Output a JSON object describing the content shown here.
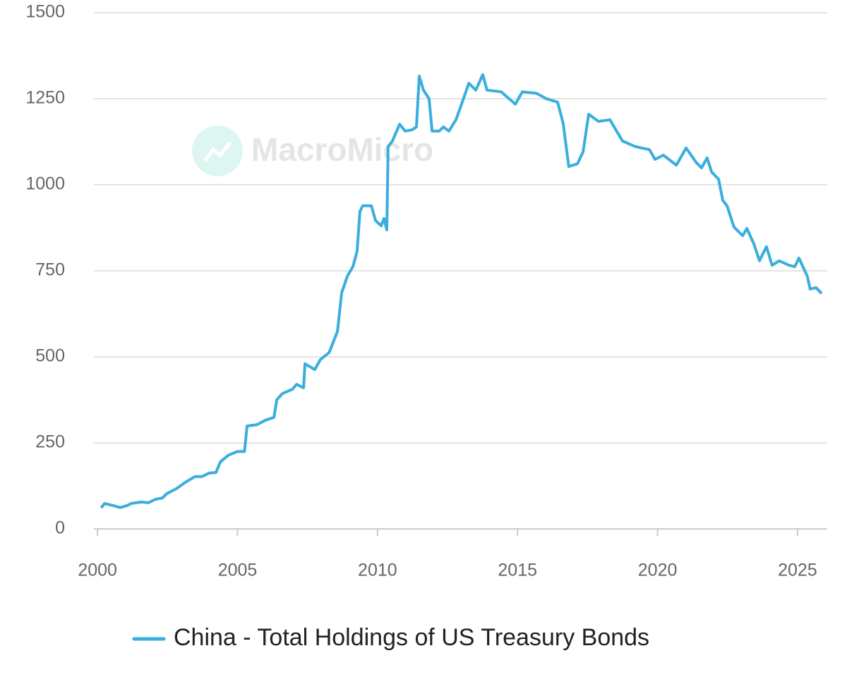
{
  "chart_data": {
    "type": "line",
    "watermark": "MacroMicro",
    "x": [
      2000.13,
      2000.25,
      2000.55,
      2000.81,
      2001.06,
      2001.21,
      2001.56,
      2001.81,
      2002.07,
      2002.32,
      2002.47,
      2002.82,
      2003.13,
      2003.48,
      2003.73,
      2003.98,
      2004.23,
      2004.39,
      2004.69,
      2005.0,
      2005.25,
      2005.34,
      2005.7,
      2006.0,
      2006.3,
      2006.4,
      2006.6,
      2006.96,
      2007.11,
      2007.36,
      2007.41,
      2007.76,
      2007.96,
      2008.27,
      2008.42,
      2008.57,
      2008.72,
      2008.92,
      2009.12,
      2009.27,
      2009.37,
      2009.47,
      2009.78,
      2009.93,
      2010.13,
      2010.23,
      2010.33,
      2010.38,
      2010.53,
      2010.79,
      2010.99,
      2011.24,
      2011.39,
      2011.49,
      2011.64,
      2011.84,
      2011.95,
      2012.2,
      2012.35,
      2012.55,
      2012.8,
      2013.0,
      2013.26,
      2013.51,
      2013.76,
      2013.91,
      2014.42,
      2014.92,
      2015.17,
      2015.67,
      2016.03,
      2016.43,
      2016.63,
      2016.83,
      2017.14,
      2017.34,
      2017.54,
      2017.89,
      2018.3,
      2018.75,
      2019.2,
      2019.71,
      2019.91,
      2020.21,
      2020.67,
      2021.02,
      2021.37,
      2021.57,
      2021.77,
      2021.93,
      2022.18,
      2022.33,
      2022.48,
      2022.73,
      2023.04,
      2023.19,
      2023.44,
      2023.64,
      2023.89,
      2024.09,
      2024.34,
      2024.7,
      2024.9,
      2025.05,
      2025.35,
      2025.45,
      2025.66,
      2025.86
    ],
    "series": [
      {
        "name": "China - Total Holdings of US Treasury Bonds",
        "color": "#3aaedc",
        "values": [
          61,
          74,
          68,
          62,
          68,
          74,
          78,
          76,
          86,
          90,
          102,
          117,
          135,
          152,
          152,
          162,
          164,
          195,
          215,
          225,
          225,
          299,
          303,
          316,
          324,
          375,
          393,
          406,
          420,
          410,
          480,
          463,
          492,
          512,
          543,
          574,
          686,
          734,
          762,
          807,
          922,
          939,
          939,
          896,
          881,
          902,
          869,
          1111,
          1127,
          1176,
          1156,
          1160,
          1168,
          1316,
          1275,
          1250,
          1156,
          1156,
          1168,
          1156,
          1189,
          1234,
          1295,
          1275,
          1320,
          1275,
          1270,
          1234,
          1270,
          1266,
          1250,
          1240,
          1178,
          1053,
          1061,
          1096,
          1205,
          1184,
          1189,
          1127,
          1111,
          1102,
          1074,
          1086,
          1057,
          1107,
          1066,
          1049,
          1078,
          1037,
          1016,
          955,
          939,
          877,
          852,
          873,
          828,
          779,
          820,
          766,
          779,
          766,
          762,
          787,
          734,
          697,
          701,
          684
        ]
      }
    ],
    "xlim": [
      1999.87,
      2026.06
    ],
    "xticks": [
      2000,
      2005,
      2010,
      2015,
      2020,
      2025
    ],
    "ylim": [
      0,
      1500
    ],
    "yticks": [
      0,
      250,
      500,
      750,
      1000,
      1250,
      1500
    ],
    "grid": true,
    "legend": "bottom"
  }
}
